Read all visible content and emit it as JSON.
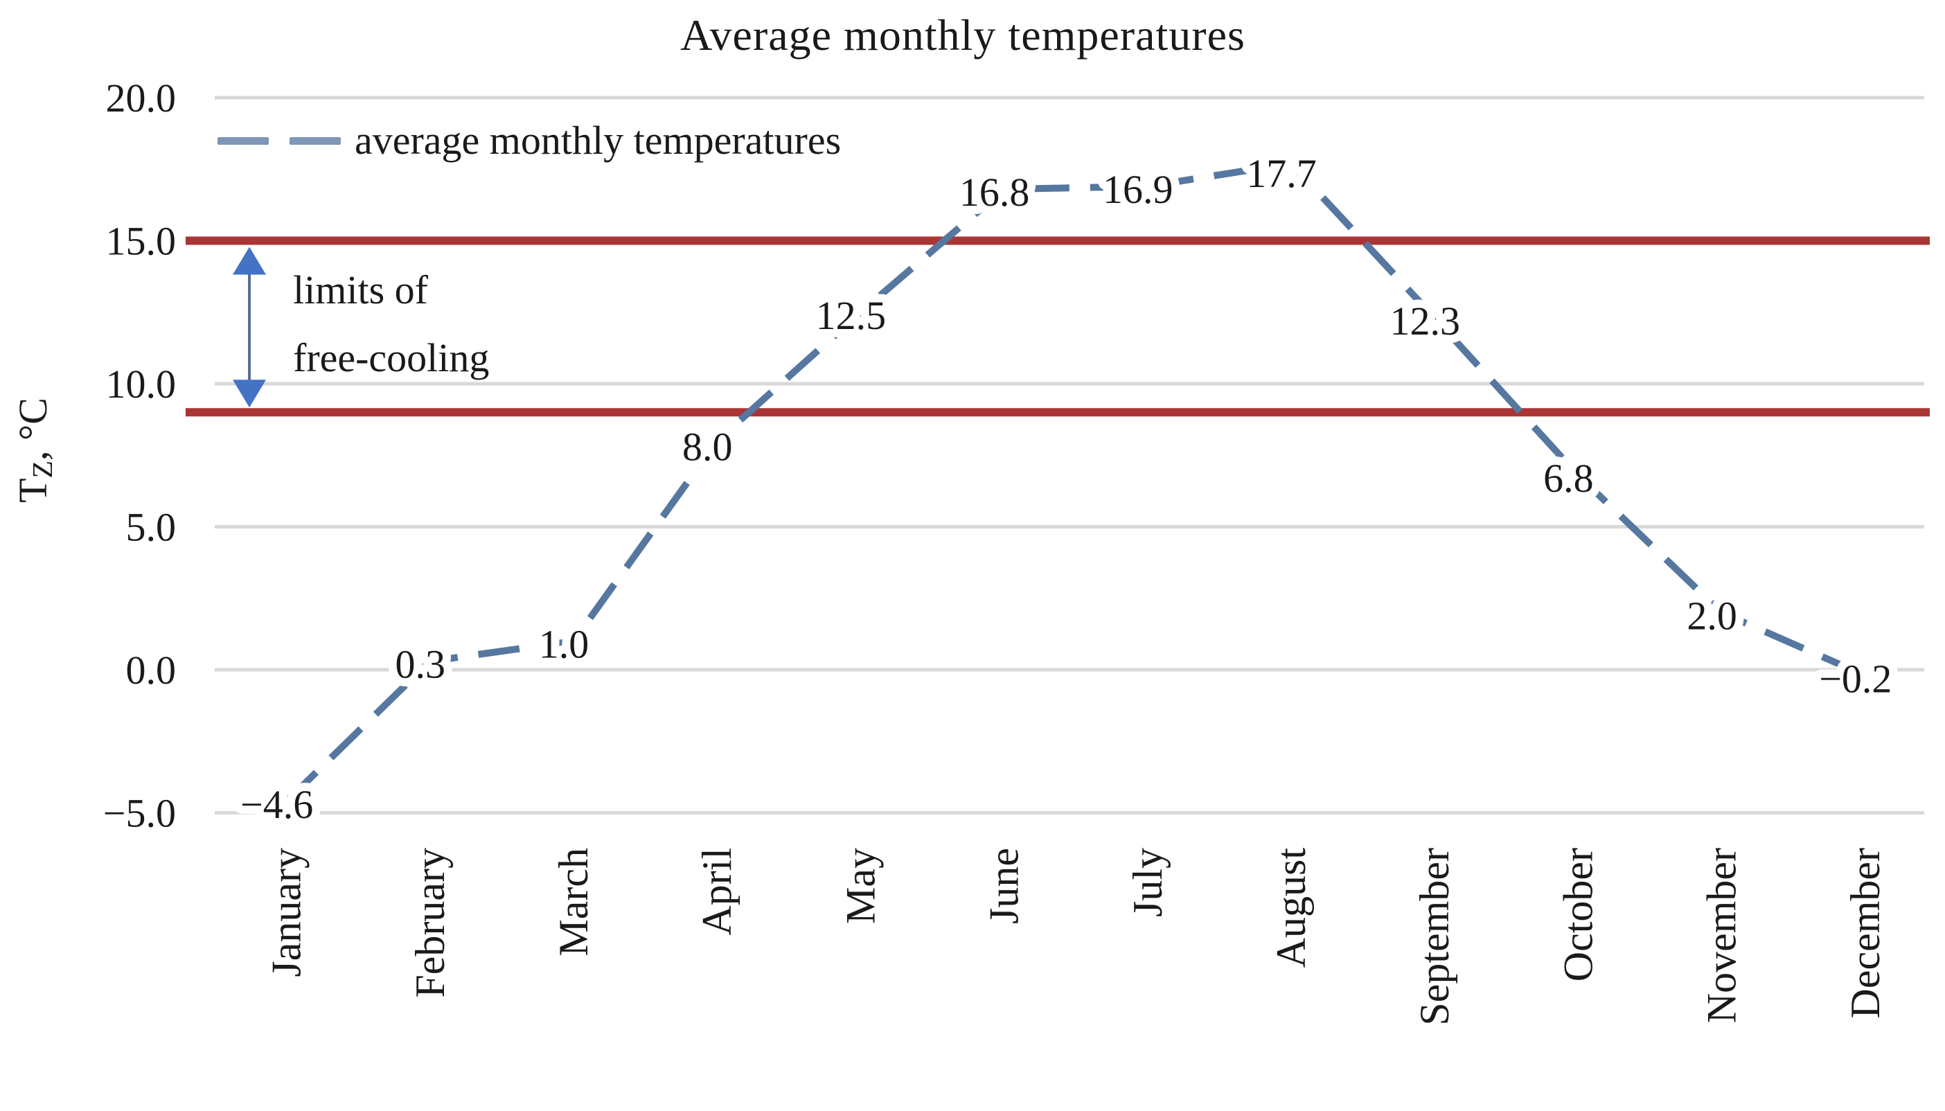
{
  "chart_data": {
    "type": "line",
    "title": "Average monthly temperatures",
    "y_axis_title": {
      "main": "T",
      "sub": "Z",
      "rest": ", °C"
    },
    "categories": [
      "January",
      "February",
      "March",
      "April",
      "May",
      "June",
      "July",
      "August",
      "September",
      "October",
      "November",
      "December"
    ],
    "series": [
      {
        "name": "average monthly temperatures",
        "values": [
          -4.6,
          0.3,
          1.0,
          8.0,
          12.5,
          16.8,
          16.9,
          17.7,
          12.3,
          6.8,
          2.0,
          -0.2
        ],
        "point_labels": [
          "−4.6",
          "0.3",
          "1.0",
          "8.0",
          "12.5",
          "16.8",
          "16.9",
          "17.7",
          "12.3",
          "6.8",
          "2.0",
          "−0.2"
        ],
        "line_style": "dashed"
      }
    ],
    "y_ticks": [
      {
        "value": 20,
        "label": "20.0"
      },
      {
        "value": 15,
        "label": "15.0"
      },
      {
        "value": 10,
        "label": "10.0"
      },
      {
        "value": 5,
        "label": "5.0"
      },
      {
        "value": 0,
        "label": "0.0"
      },
      {
        "value": -5,
        "label": "−5.0"
      }
    ],
    "ylim": [
      -5,
      20
    ],
    "grid": true,
    "legend_position": "top-left",
    "limit_lines": {
      "values": [
        15,
        9
      ]
    },
    "annotation": {
      "line1": "limits of",
      "line2": "free-cooling"
    },
    "colors": {
      "series_line": "#56779f",
      "legend_dash": "#7e96b8",
      "limit_line": "#a93534",
      "arrow_head": "#4472c4",
      "arrow_shaft": "#5b6e90",
      "gridline": "#d9d9d9",
      "text": "#1a1a1a"
    }
  },
  "legend": {
    "label": "average monthly temperatures"
  }
}
